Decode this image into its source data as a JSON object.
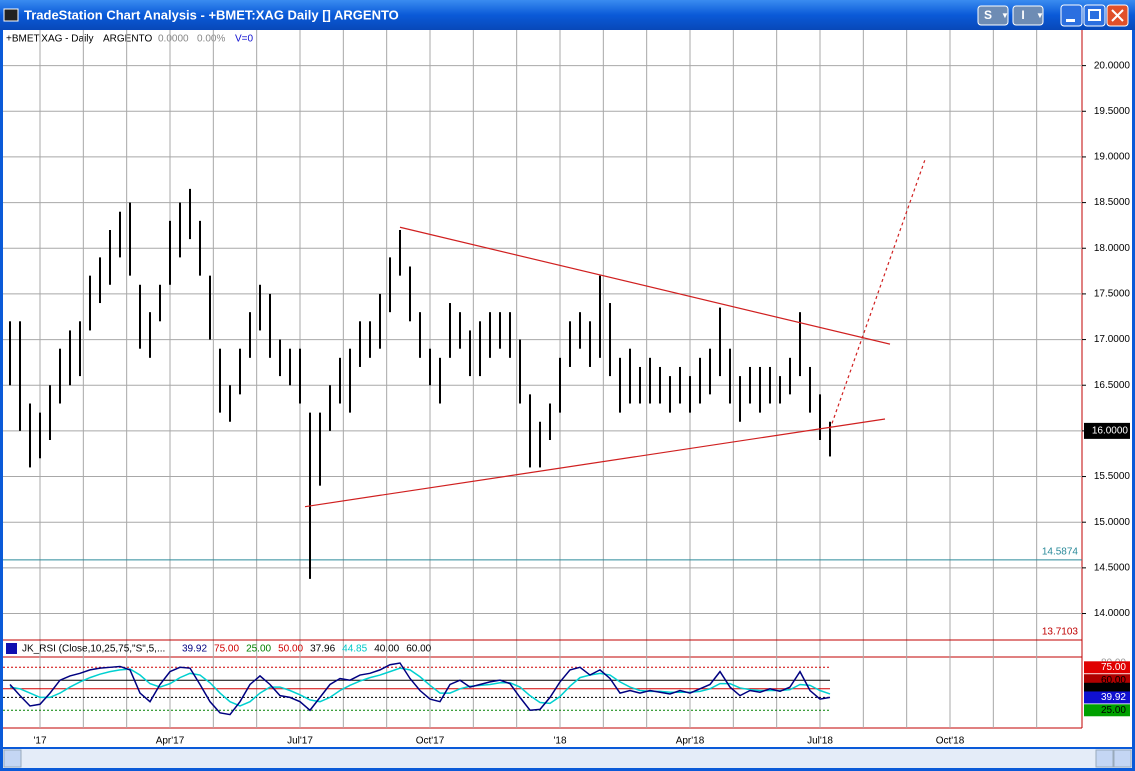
{
  "window": {
    "title": "TradeStation Chart Analysis - +BMET:XAG Daily [] ARGENTO",
    "buttons": [
      "S",
      "I"
    ]
  },
  "header": {
    "symbol": "+BMET:XAG - Daily",
    "name": "ARGENTO",
    "change": "0.0000",
    "percent": "0.00%",
    "volume": "V=0"
  },
  "chart_data": [
    {
      "type": "hilo",
      "color": "#000000",
      "categories": [
        null,
        null,
        null,
        "'17",
        null,
        null,
        null,
        null,
        null,
        null,
        null,
        null,
        null,
        null,
        null,
        null,
        "Apr'17",
        null,
        null,
        null,
        null,
        null,
        null,
        null,
        null,
        null,
        null,
        null,
        null,
        "Jul'17",
        null,
        null,
        null,
        null,
        null,
        null,
        null,
        null,
        null,
        null,
        null,
        null,
        "Oct'17",
        null,
        null,
        null,
        null,
        null,
        null,
        null,
        null,
        null,
        null,
        null,
        null,
        "'18",
        null,
        null,
        null,
        null,
        null,
        null,
        null,
        null,
        null,
        null,
        null,
        null,
        "Apr'18",
        null,
        null,
        null,
        null,
        null,
        null,
        null,
        null,
        null,
        null,
        null,
        null,
        "Jul'18",
        null,
        null,
        null,
        null,
        null,
        null,
        null,
        null,
        null,
        null,
        null,
        null,
        "Oct'18",
        null,
        null,
        null,
        null,
        null,
        null,
        null,
        null,
        null,
        null,
        null,
        null
      ],
      "series": [
        {
          "name": "high",
          "values": [
            17.2,
            17.2,
            16.3,
            16.2,
            16.5,
            16.9,
            17.1,
            17.2,
            17.7,
            17.9,
            18.2,
            18.4,
            18.5,
            17.6,
            17.3,
            17.6,
            18.3,
            18.5,
            18.65,
            18.3,
            17.7,
            16.9,
            16.5,
            16.9,
            17.3,
            17.6,
            17.5,
            17.0,
            16.9,
            16.9,
            16.2,
            16.2,
            16.5,
            16.8,
            16.9,
            17.2,
            17.2,
            17.5,
            17.9,
            18.2,
            17.8,
            17.3,
            16.9,
            16.8,
            17.4,
            17.3,
            17.1,
            17.2,
            17.3,
            17.3,
            17.3,
            17.0,
            16.4,
            16.1,
            16.3,
            16.8,
            17.2,
            17.3,
            17.2,
            17.7,
            17.4,
            16.8,
            16.9,
            16.7,
            16.8,
            16.7,
            16.6,
            16.7,
            16.6,
            16.8,
            16.9,
            17.35,
            16.9,
            16.6,
            16.7,
            16.7,
            16.7,
            16.6,
            16.8,
            17.3,
            16.7,
            16.4,
            16.1,
            null,
            null,
            null,
            null,
            null,
            null,
            null,
            null,
            null,
            null,
            null,
            null,
            null,
            null,
            null,
            null,
            null,
            null,
            null,
            null,
            null,
            null,
            null,
            null
          ]
        },
        {
          "name": "low",
          "values": [
            16.5,
            16.0,
            15.6,
            15.7,
            15.9,
            16.3,
            16.5,
            16.6,
            17.1,
            17.4,
            17.6,
            17.9,
            17.7,
            16.9,
            16.8,
            17.2,
            17.6,
            17.9,
            18.1,
            17.7,
            17.0,
            16.2,
            16.1,
            16.4,
            16.8,
            17.1,
            16.8,
            16.6,
            16.5,
            16.3,
            14.38,
            15.4,
            16.0,
            16.3,
            16.2,
            16.7,
            16.8,
            16.9,
            17.3,
            17.7,
            17.2,
            16.8,
            16.5,
            16.3,
            16.8,
            16.9,
            16.6,
            16.6,
            16.8,
            16.9,
            16.8,
            16.3,
            15.6,
            15.6,
            15.9,
            16.2,
            16.7,
            16.9,
            16.7,
            16.8,
            16.6,
            16.2,
            16.3,
            16.3,
            16.3,
            16.3,
            16.2,
            16.3,
            16.2,
            16.3,
            16.4,
            16.6,
            16.3,
            16.1,
            16.3,
            16.2,
            16.3,
            16.3,
            16.4,
            16.6,
            16.2,
            15.9,
            15.72,
            null,
            null,
            null,
            null,
            null,
            null,
            null,
            null,
            null,
            null,
            null,
            null,
            null,
            null,
            null,
            null,
            null,
            null,
            null,
            null,
            null,
            null,
            null,
            null
          ]
        }
      ],
      "ylim": [
        13.71,
        20.39
      ],
      "yticks": [
        {
          "value": 14,
          "label": "14.0000"
        },
        {
          "value": 14.5,
          "label": "14.5000"
        },
        {
          "value": 15,
          "label": "15.0000"
        },
        {
          "value": 15.5,
          "label": "15.5000"
        },
        {
          "value": 16,
          "label": "16.0000"
        },
        {
          "value": 16.5,
          "label": "16.5000"
        },
        {
          "value": 17,
          "label": "17.0000"
        },
        {
          "value": 17.5,
          "label": "17.5000"
        },
        {
          "value": 18,
          "label": "18.0000"
        },
        {
          "value": 18.5,
          "label": "18.5000"
        },
        {
          "value": 19,
          "label": "19.0000"
        },
        {
          "value": 19.5,
          "label": "19.5000"
        },
        {
          "value": 20,
          "label": "20.0000"
        }
      ],
      "grid": true,
      "hlines": [
        {
          "value": 14.5874,
          "label": "14.5874",
          "color": "#2a8a9a"
        },
        {
          "value": 13.7103,
          "label": "13.7103",
          "color": "#c00000"
        }
      ],
      "last": {
        "value": 16,
        "label": "16.0000"
      },
      "trendlines": [
        {
          "x": [
            39.0,
            88.0
          ],
          "y": [
            18.23,
            16.95
          ],
          "color": "#d02020",
          "dashed": false
        },
        {
          "x": [
            29.5,
            87.5
          ],
          "y": [
            15.17,
            16.13
          ],
          "color": "#d02020",
          "dashed": false
        },
        {
          "x": [
            82.0,
            91.5
          ],
          "y": [
            16.02,
            18.97
          ],
          "color": "#d02020",
          "dashed": true
        }
      ]
    },
    {
      "type": "line",
      "title": "JK_RSI (Close,10,25,75,\"S\",5,...",
      "readings": [
        {
          "label": "39.92",
          "color": "#000080"
        },
        {
          "label": "75.00",
          "color": "#d00000"
        },
        {
          "label": "25.00",
          "color": "#008000"
        },
        {
          "label": "50.00",
          "color": "#d00000"
        },
        {
          "label": "37.96",
          "color": "#000000"
        },
        {
          "label": "44.85",
          "color": "#00c8c8"
        },
        {
          "label": "40.00",
          "color": "#000000"
        },
        {
          "label": "60.00",
          "color": "#000000"
        }
      ],
      "series": [
        {
          "name": "RSI",
          "color": "#000080",
          "values": [
            55,
            42,
            30,
            32,
            45,
            60,
            65,
            68,
            72,
            74,
            75,
            76,
            72,
            45,
            35,
            55,
            70,
            75,
            74,
            55,
            35,
            22,
            20,
            35,
            55,
            65,
            55,
            42,
            40,
            35,
            25,
            40,
            55,
            62,
            60,
            66,
            68,
            72,
            78,
            80,
            62,
            48,
            38,
            35,
            55,
            60,
            52,
            55,
            58,
            60,
            56,
            40,
            25,
            26,
            40,
            58,
            72,
            75,
            66,
            72,
            62,
            45,
            48,
            45,
            48,
            46,
            44,
            48,
            45,
            50,
            55,
            70,
            52,
            42,
            48,
            46,
            50,
            47,
            52,
            70,
            48,
            38,
            40
          ]
        },
        {
          "name": "Average",
          "color": "#00d0d0",
          "values": [
            52,
            50,
            45,
            40,
            40,
            45,
            52,
            58,
            63,
            67,
            70,
            72,
            73,
            66,
            56,
            52,
            56,
            63,
            68,
            66,
            57,
            45,
            35,
            30,
            35,
            45,
            52,
            52,
            48,
            43,
            37,
            35,
            40,
            48,
            54,
            59,
            63,
            66,
            70,
            74,
            72,
            64,
            54,
            45,
            45,
            50,
            53,
            54,
            55,
            57,
            57,
            52,
            42,
            34,
            33,
            41,
            53,
            63,
            66,
            68,
            66,
            58,
            52,
            48,
            47,
            47,
            46,
            46,
            46,
            47,
            50,
            56,
            56,
            51,
            49,
            48,
            48,
            48,
            49,
            55,
            54,
            48,
            44
          ]
        }
      ],
      "ylim": [
        16,
        87
      ],
      "levels": [
        {
          "value": 75,
          "color": "#d00000",
          "dashed": true
        },
        {
          "value": 60,
          "color": "#000000",
          "dashed": false
        },
        {
          "value": 50,
          "color": "#d00000",
          "dashed": false
        },
        {
          "value": 40,
          "color": "#000000",
          "dashed": true
        },
        {
          "value": 25,
          "color": "#008000",
          "dashed": true
        }
      ],
      "axis_labels": [
        {
          "value": 80,
          "label": "80.00",
          "bg": "#ffffff",
          "fg": "#999999"
        },
        {
          "value": 75,
          "label": "75.00",
          "bg": "#e00000",
          "fg": "#ffffff"
        },
        {
          "value": 60,
          "label": "60.00",
          "bg": "#b00000",
          "fg": "#000000"
        },
        {
          "value": 50,
          "label": "50.00",
          "bg": "#000000",
          "fg": "#000000"
        },
        {
          "value": 39.92,
          "label": "39.92",
          "bg": "#1010d0",
          "fg": "#ffffff"
        },
        {
          "value": 25,
          "label": "25.00",
          "bg": "#00a000",
          "fg": "#000000"
        }
      ]
    }
  ]
}
